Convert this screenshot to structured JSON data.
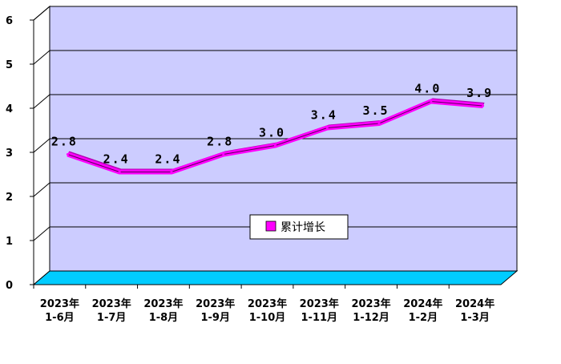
{
  "chart_data": {
    "type": "line",
    "categories": [
      [
        "2023年",
        "1-6月"
      ],
      [
        "2023年",
        "1-7月"
      ],
      [
        "2023年",
        "1-8月"
      ],
      [
        "2023年",
        "1-9月"
      ],
      [
        "2023年",
        "1-10月"
      ],
      [
        "2023年",
        "1-11月"
      ],
      [
        "2023年",
        "1-12月"
      ],
      [
        "2024年",
        "1-2月"
      ],
      [
        "2024年",
        "1-3月"
      ]
    ],
    "series": [
      {
        "name": "累计增长",
        "values": [
          2.8,
          2.4,
          2.4,
          2.8,
          3.0,
          3.4,
          3.5,
          4.0,
          3.9
        ],
        "labels": [
          "2.8",
          "2.4",
          "2.4",
          "2.8",
          "3.0",
          "3.4",
          "3.5",
          "4.0",
          "3.9"
        ],
        "color": "#FF00FF"
      }
    ],
    "ylim": [
      0,
      6
    ],
    "yticks": [
      "0",
      "1",
      "2",
      "3",
      "4",
      "5",
      "6"
    ],
    "grid": true,
    "legend_position": "center",
    "colors": {
      "plot_wall": "#CCCCFF",
      "floor": "#00CCFF",
      "line": "#FF00FF"
    }
  }
}
